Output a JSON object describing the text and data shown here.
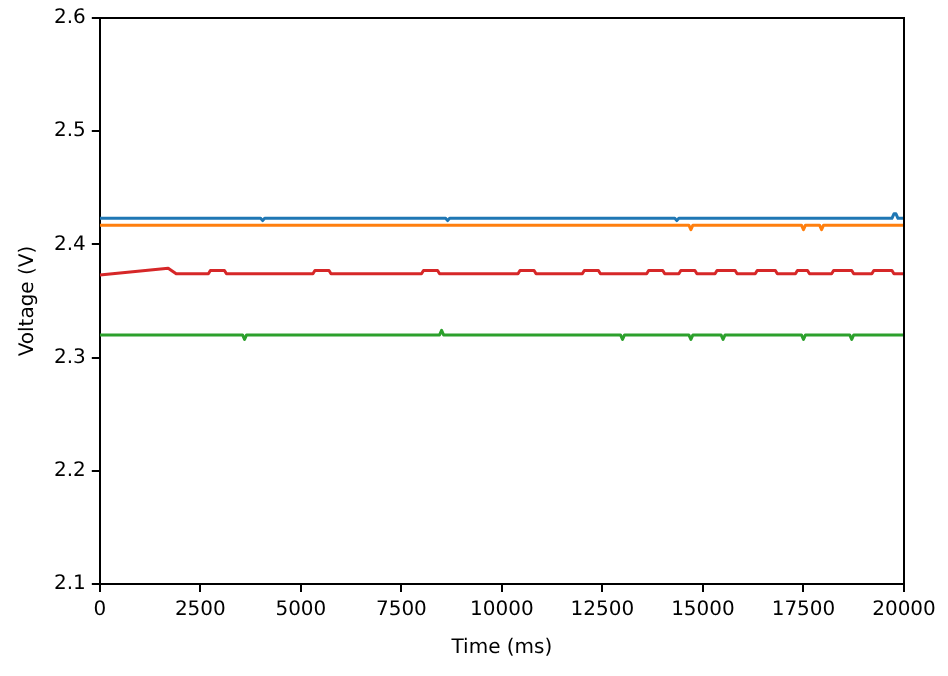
{
  "chart_data": {
    "type": "line",
    "xlabel": "Time (ms)",
    "ylabel": "Voltage (V)",
    "xlim": [
      0,
      20000
    ],
    "ylim": [
      2.1,
      2.6
    ],
    "xticks": [
      0,
      2500,
      5000,
      7500,
      10000,
      12500,
      15000,
      17500,
      20000
    ],
    "yticks": [
      2.1,
      2.2,
      2.3,
      2.4,
      2.5,
      2.6
    ],
    "grid": false,
    "legend": false,
    "marker": "none",
    "line_style": "solid",
    "series": [
      {
        "color": "#1f77b4",
        "x": [
          0,
          2150,
          2200,
          4000,
          4050,
          4100,
          8600,
          8650,
          8700,
          14300,
          14350,
          14400,
          19700,
          19750,
          19800,
          19850,
          20000
        ],
        "values": [
          2.423,
          2.423,
          2.423,
          2.423,
          2.421,
          2.423,
          2.423,
          2.421,
          2.423,
          2.423,
          2.421,
          2.423,
          2.423,
          2.427,
          2.427,
          2.423,
          2.423
        ]
      },
      {
        "color": "#ff7f0e",
        "x": [
          0,
          14650,
          14700,
          14750,
          17450,
          17500,
          17550,
          17900,
          17950,
          18000,
          20000
        ],
        "values": [
          2.417,
          2.417,
          2.413,
          2.417,
          2.417,
          2.413,
          2.417,
          2.417,
          2.413,
          2.417,
          2.417
        ]
      },
      {
        "color": "#d62728",
        "x": [
          0,
          1700,
          1900,
          2700,
          2750,
          3100,
          3150,
          5300,
          5350,
          5700,
          5750,
          8000,
          8050,
          8400,
          8450,
          10400,
          10450,
          10800,
          10850,
          12000,
          12050,
          12400,
          12450,
          13600,
          13650,
          14000,
          14050,
          14400,
          14450,
          14800,
          14850,
          15300,
          15350,
          15800,
          15850,
          16300,
          16350,
          16800,
          16850,
          17300,
          17350,
          17600,
          17650,
          18200,
          18250,
          18700,
          18750,
          19200,
          19250,
          19700,
          19750,
          20000
        ],
        "values": [
          2.373,
          2.379,
          2.374,
          2.374,
          2.377,
          2.377,
          2.374,
          2.374,
          2.377,
          2.377,
          2.374,
          2.374,
          2.377,
          2.377,
          2.374,
          2.374,
          2.377,
          2.377,
          2.374,
          2.374,
          2.377,
          2.377,
          2.374,
          2.374,
          2.377,
          2.377,
          2.374,
          2.374,
          2.377,
          2.377,
          2.374,
          2.374,
          2.377,
          2.377,
          2.374,
          2.374,
          2.377,
          2.377,
          2.374,
          2.374,
          2.377,
          2.377,
          2.374,
          2.374,
          2.377,
          2.377,
          2.374,
          2.374,
          2.377,
          2.377,
          2.374,
          2.374
        ]
      },
      {
        "color": "#2ca02c",
        "x": [
          0,
          3550,
          3600,
          3650,
          8450,
          8500,
          8550,
          12950,
          13000,
          13050,
          14650,
          14700,
          14750,
          15450,
          15500,
          15550,
          17450,
          17500,
          17550,
          18650,
          18700,
          18750,
          20000
        ],
        "values": [
          2.32,
          2.32,
          2.316,
          2.32,
          2.32,
          2.324,
          2.32,
          2.32,
          2.316,
          2.32,
          2.32,
          2.316,
          2.32,
          2.32,
          2.316,
          2.32,
          2.32,
          2.316,
          2.32,
          2.32,
          2.316,
          2.32,
          2.32
        ]
      }
    ]
  }
}
